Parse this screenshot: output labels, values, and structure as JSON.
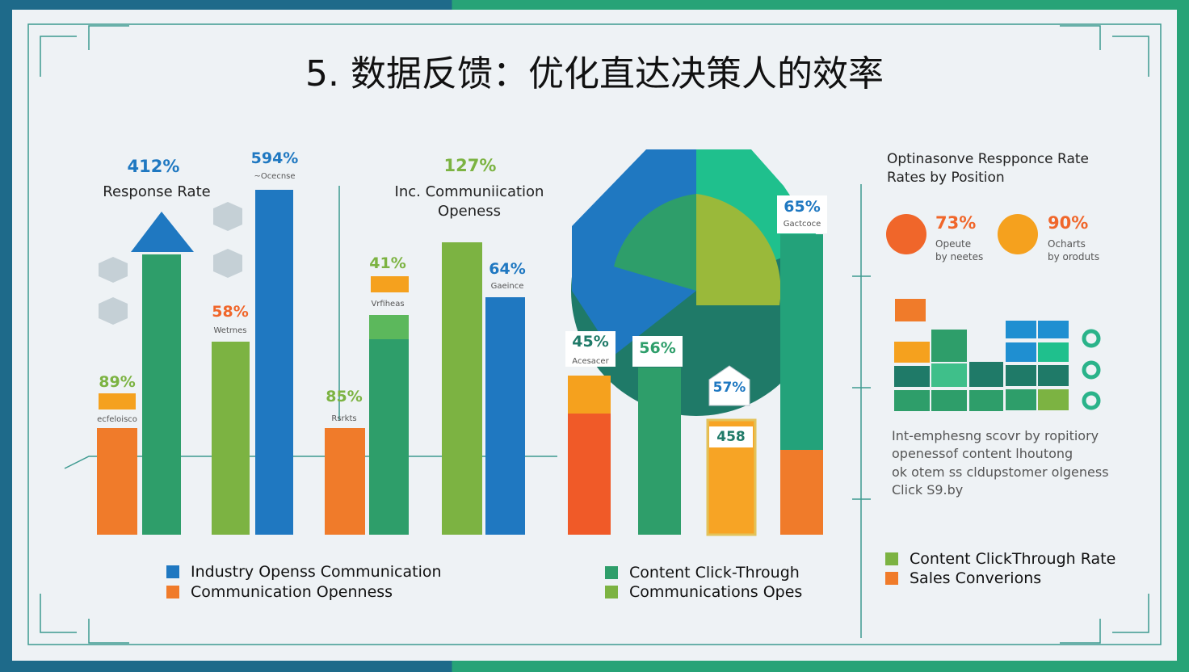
{
  "title": "5. 数据反馈：优化直达决策人的效率",
  "left_group": {
    "labels": [
      {
        "value": "412%",
        "caption": "Response Rate"
      },
      {
        "value": "594%",
        "caption": "~Ocecnse"
      },
      {
        "value": "89%",
        "caption": "ecfeloisco"
      },
      {
        "value": "58%",
        "caption": "Wetrnes"
      }
    ]
  },
  "middle_group": {
    "labels": [
      {
        "value": "127%",
        "caption": "Inc. Communiication Openess"
      },
      {
        "value": "41%",
        "caption": "Vrfiheas"
      },
      {
        "value": "64%",
        "caption": "Gaeince"
      },
      {
        "value": "85%",
        "caption": "Rsrkts"
      }
    ]
  },
  "right_group": {
    "labels": [
      {
        "value": "65%",
        "caption": "Gactcoce"
      },
      {
        "value": "45%",
        "caption": "Acesacer"
      },
      {
        "value": "56%"
      },
      {
        "value": "57%"
      },
      {
        "value": "458"
      }
    ]
  },
  "side_panel": {
    "title": [
      "Optinasonve Respponce Rate",
      "Rates by Position"
    ],
    "stats": [
      {
        "value": "73%",
        "caption": [
          "Opeute",
          "by neetes"
        ]
      },
      {
        "value": "90%",
        "caption": [
          "Ocharts",
          "by oroduts"
        ]
      }
    ],
    "paragraph": [
      "Int-emphesng scovr by ropitiory",
      "openessof content lhoutong",
      "ok otem ss cldupstomer olgeness",
      "Click S9.by"
    ]
  },
  "legends": [
    [
      "Industry Openss Communication",
      "Communication Openness"
    ],
    [
      "Content Click-Through",
      "Communications Opes"
    ],
    [
      "Content ClickThrough Rate",
      "Sales Converions"
    ]
  ]
}
